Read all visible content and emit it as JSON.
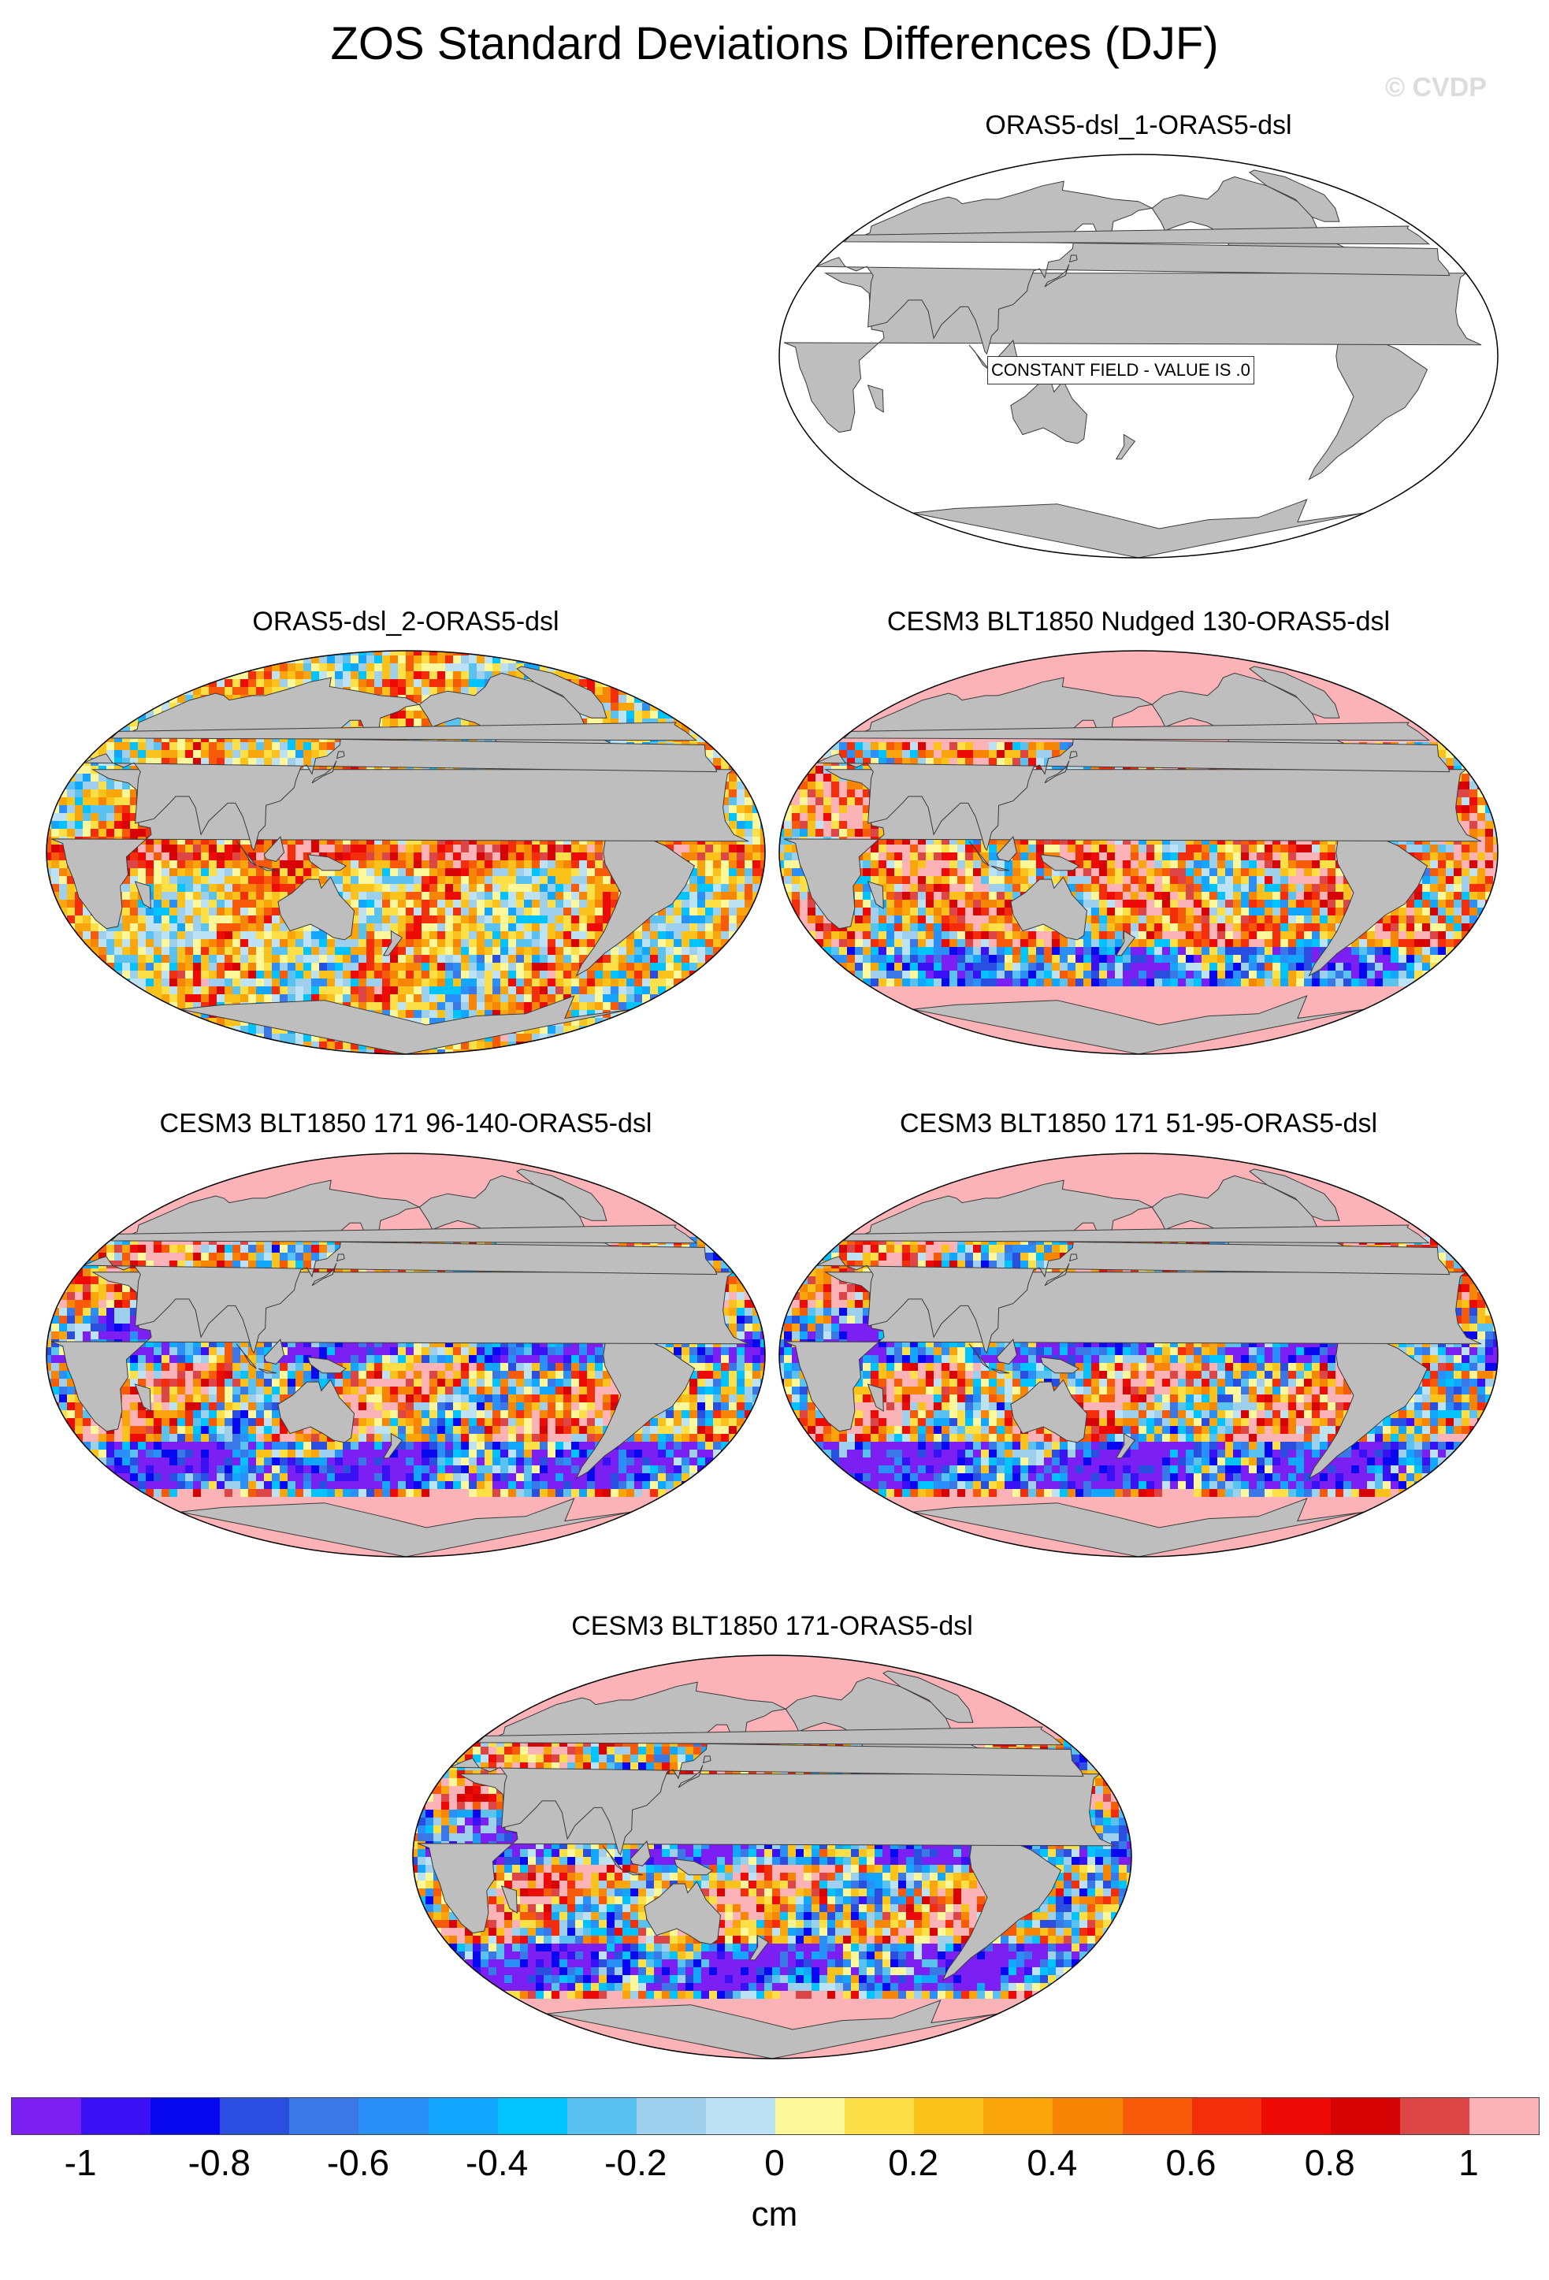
{
  "figure": {
    "title": "ZOS Standard Deviations Differences (DJF)",
    "credit": "© CVDP"
  },
  "panels": [
    {
      "title": "ORAS5-dsl_1-ORAS5-dsl",
      "style": "constant",
      "note": "CONSTANT FIELD - VALUE IS .0"
    },
    {
      "title": "ORAS5-dsl_2-ORAS5-dsl",
      "style": "warm"
    },
    {
      "title": "CESM3 BLT1850 Nudged 130-ORAS5-dsl",
      "style": "mixed"
    },
    {
      "title": "CESM3 BLT1850 171 96-140-ORAS5-dsl",
      "style": "cool"
    },
    {
      "title": "CESM3 BLT1850 171 51-95-ORAS5-dsl",
      "style": "cool"
    },
    {
      "title": "CESM3 BLT1850 171-ORAS5-dsl",
      "style": "cool"
    }
  ],
  "colorbar": {
    "units": "cm",
    "ticks": [
      "-1",
      "-0.8",
      "-0.6",
      "-0.4",
      "-0.2",
      "0",
      "0.2",
      "0.4",
      "0.6",
      "0.8",
      "1"
    ],
    "colors": [
      "#7b1ff3",
      "#3a10f5",
      "#0808f0",
      "#2a4ee0",
      "#3a78e8",
      "#2a8ff8",
      "#12a6ff",
      "#00c3ff",
      "#5ac2f0",
      "#9ed0ee",
      "#bce2f4",
      "#fdf79c",
      "#fde048",
      "#fbc21c",
      "#fba50c",
      "#f88606",
      "#f75a08",
      "#f42e0a",
      "#ee0a06",
      "#d60404",
      "#dc4646",
      "#fbb3b7"
    ],
    "land_color": "#bebebe",
    "ocean_background": "#ffffff"
  }
}
